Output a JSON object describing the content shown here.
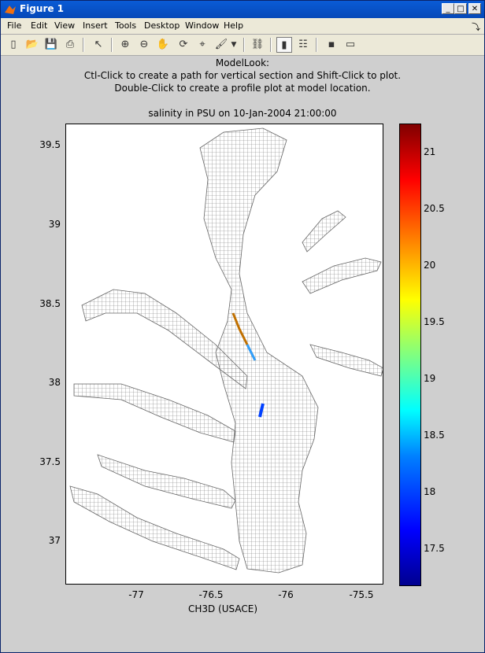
{
  "window": {
    "title": "Figure 1",
    "minimize": "_",
    "maximize": "□",
    "close": "✕"
  },
  "menu": [
    "File",
    "Edit",
    "View",
    "Insert",
    "Tools",
    "Desktop",
    "Window",
    "Help"
  ],
  "header": {
    "line1": "ModelLook:",
    "line2": "Ctl-Click to create a path for vertical section and Shift-Click to plot.",
    "line3": "Double-Click to create a profile plot at model location.",
    "plot_title": "salinity in PSU on 10-Jan-2004 21:00:00"
  },
  "axes": {
    "yticks": [
      "39.5",
      "39",
      "38.5",
      "38",
      "37.5",
      "37"
    ],
    "xticks": [
      "-77",
      "-76.5",
      "-76",
      "-75.5"
    ],
    "xlabel": "CH3D (USACE)"
  },
  "colorbar": {
    "ticks": [
      "21",
      "20.5",
      "20",
      "19.5",
      "19",
      "18.5",
      "18",
      "17.5"
    ],
    "min": 17.2,
    "max": 21.2
  },
  "chart_data": {
    "type": "map",
    "title": "salinity in PSU on 10-Jan-2004 21:00:00",
    "xlabel": "CH3D (USACE)",
    "xlim": [
      -77.45,
      -75.45
    ],
    "ylim": [
      36.7,
      39.65
    ],
    "colorbar_range": [
      17.2,
      21.2
    ]
  }
}
